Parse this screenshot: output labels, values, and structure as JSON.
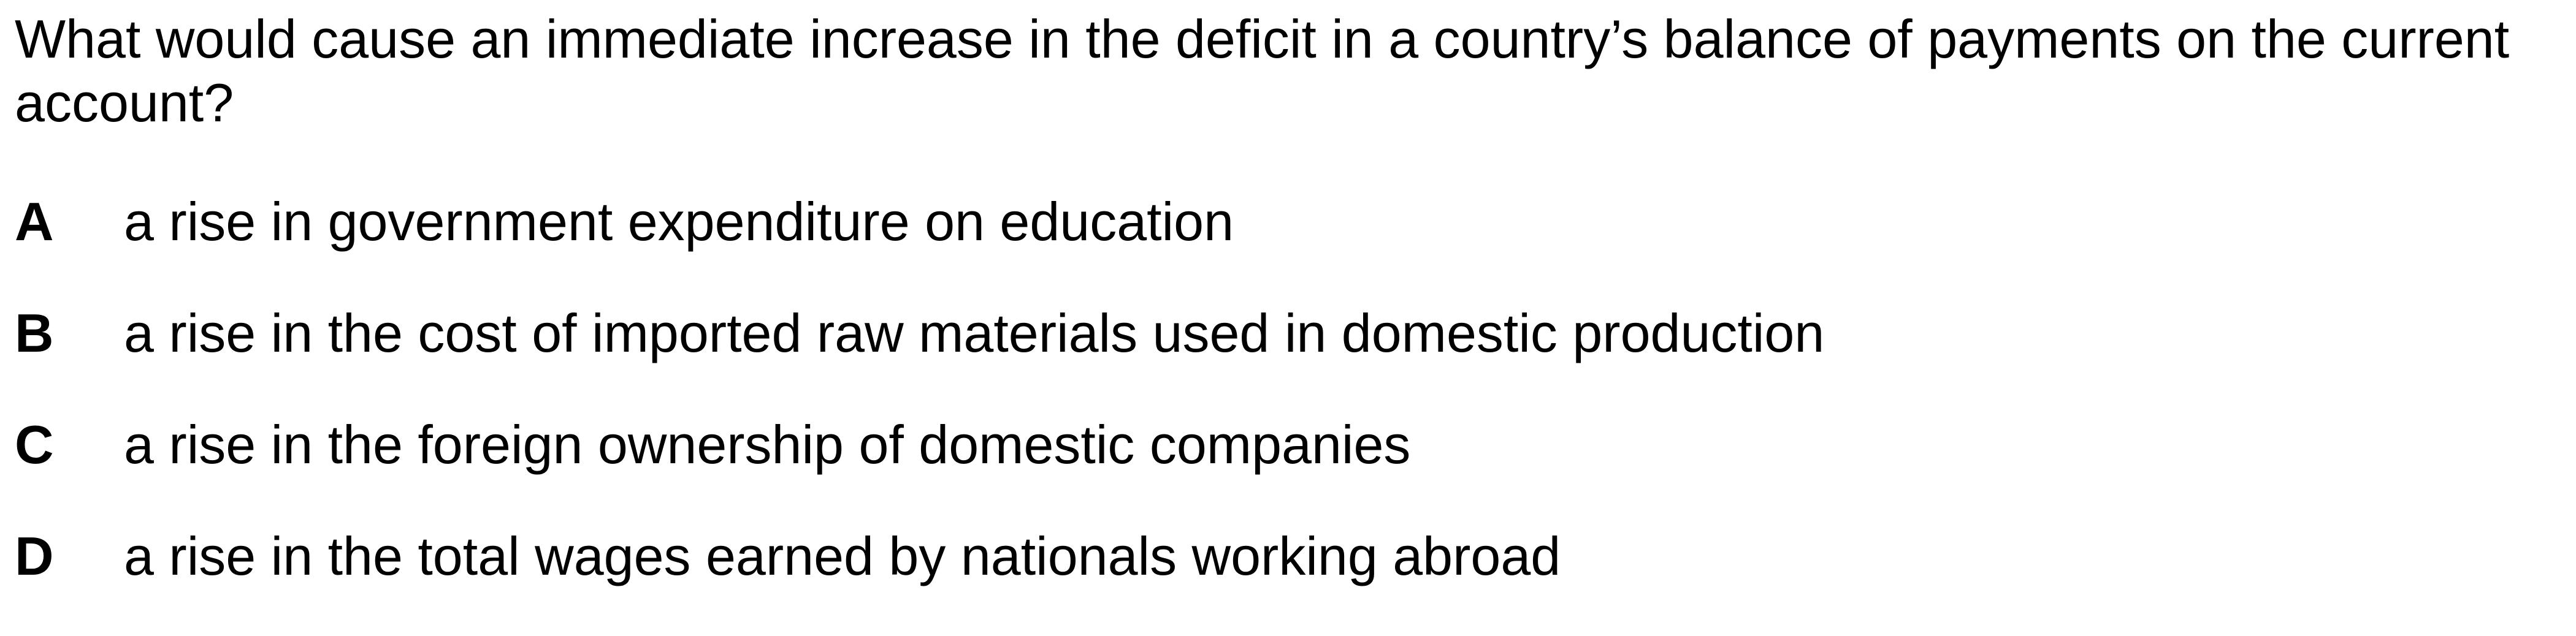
{
  "question": {
    "text": "What would cause an immediate increase in the deficit in a country’s balance of payments on the current account?"
  },
  "options": [
    {
      "letter": "A",
      "text": "a rise in government expenditure on education"
    },
    {
      "letter": "B",
      "text": "a rise in the cost of imported raw materials used in domestic production"
    },
    {
      "letter": "C",
      "text": "a rise in the foreign ownership of domestic companies"
    },
    {
      "letter": "D",
      "text": "a rise in the total wages earned by nationals working abroad"
    }
  ]
}
